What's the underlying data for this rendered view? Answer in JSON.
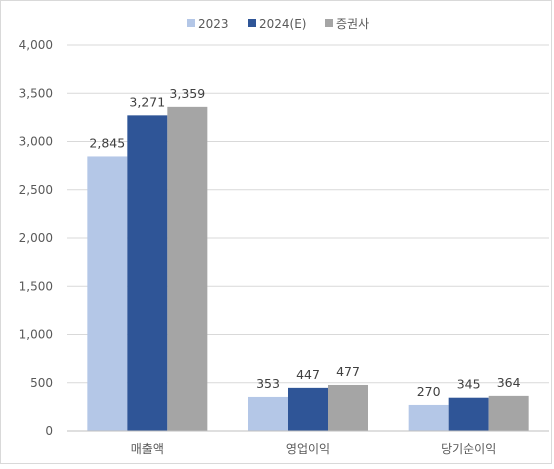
{
  "chart_data": {
    "type": "bar",
    "categories": [
      "매출액",
      "영업이익",
      "당기순이익"
    ],
    "series": [
      {
        "name": "2023",
        "values": [
          2845,
          353,
          270
        ]
      },
      {
        "name": "2024(E)",
        "values": [
          3271,
          447,
          345
        ]
      },
      {
        "name": "증권사",
        "values": [
          3359,
          477,
          364
        ]
      }
    ],
    "data_labels": [
      [
        "2,845",
        "353",
        "270"
      ],
      [
        "3,271",
        "447",
        "345"
      ],
      [
        "3,359",
        "477",
        "364"
      ]
    ],
    "yticks": [
      "0",
      "500",
      "1,000",
      "1,500",
      "2,000",
      "2,500",
      "3,000",
      "3,500",
      "4,000"
    ],
    "ylim": [
      0,
      4000
    ],
    "ytick_step": 500,
    "grid": true,
    "legend": "top-center",
    "colors": [
      "#b4c7e7",
      "#2f5597",
      "#a5a5a5"
    ],
    "title": "",
    "xlabel": "",
    "ylabel": ""
  }
}
